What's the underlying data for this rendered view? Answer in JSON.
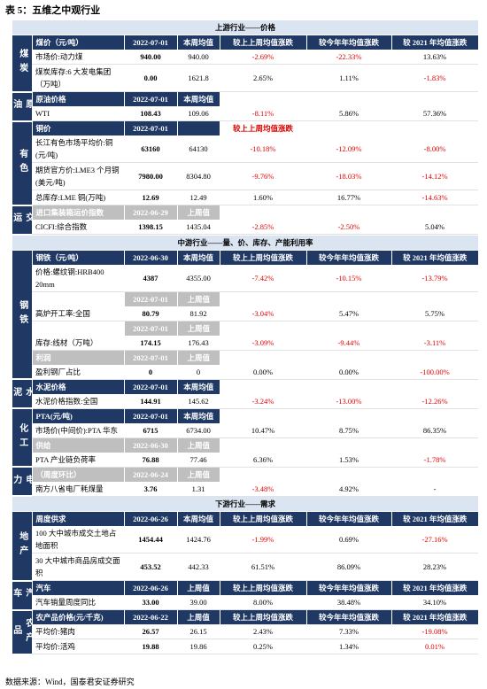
{
  "title": "表 5：五维之中观行业",
  "source": "数据来源：Wind，国泰君安证券研究",
  "sections": [
    {
      "title": "上游行业——价格",
      "groups": [
        {
          "category": "煤炭",
          "rows": [
            {
              "type": "header",
              "cells": [
                "煤价（元/吨）",
                "2022-07-01",
                "本周均值",
                "较上上周均值涨跌",
                "较今年年均值涨跌",
                "较 2021 年均值涨跌"
              ]
            },
            {
              "type": "data",
              "cells": [
                "市场价:动力煤",
                "940.00",
                "940.00",
                "-2.69%",
                "-22.33%",
                "13.63%"
              ],
              "red": [
                3,
                4
              ]
            },
            {
              "type": "data",
              "cells": [
                "煤炭库存:6 大发电集团（万吨）",
                "0.00",
                "1621.8",
                "2.65%",
                "1.11%",
                "-1.83%"
              ],
              "red": [
                5
              ]
            }
          ]
        },
        {
          "category": "原油",
          "rows": [
            {
              "type": "header",
              "cells": [
                "原油价格",
                "2022-07-01",
                "本周均值"
              ]
            },
            {
              "type": "data",
              "cells": [
                "WTI",
                "108.43",
                "109.06",
                "-8.11%",
                "5.86%",
                "57.36%"
              ],
              "red": [
                3
              ]
            }
          ]
        },
        {
          "category": "有色",
          "rows": [
            {
              "type": "header",
              "cells": [
                "铜价",
                "2022-07-01",
                null,
                "较上上周均值涨跌"
              ],
              "red": [
                3
              ]
            },
            {
              "type": "data",
              "cells": [
                "长江有色市场平均价:铜(元/吨)",
                "63160",
                "64130",
                "-10.18%",
                "-12.09%",
                "-8.00%"
              ],
              "red": [
                3,
                4,
                5
              ]
            },
            {
              "type": "data",
              "cells": [
                "期货官方价:LME3 个月铜(美元/吨)",
                "7980.00",
                "8304.80",
                "-9.76%",
                "-18.03%",
                "-14.12%"
              ],
              "red": [
                3,
                4,
                5
              ]
            },
            {
              "type": "data",
              "cells": [
                "总库存:LME 铜(万吨)",
                "12.69",
                "12.49",
                "1.60%",
                "16.77%",
                "-14.63%"
              ],
              "red": [
                5
              ]
            }
          ]
        },
        {
          "category": "交运",
          "rows": [
            {
              "type": "sub",
              "cells": [
                "进口集装箱运价指数",
                "2022-06-29",
                "上周值"
              ]
            },
            {
              "type": "data",
              "cells": [
                "CICFI:综合指数",
                "1398.15",
                "1435.04",
                "-2.85%",
                "-2.50%",
                "5.04%"
              ],
              "red": [
                3,
                4
              ]
            }
          ]
        }
      ]
    },
    {
      "title": "中游行业——量、价、库存、产能利用率",
      "groups": [
        {
          "category": "钢铁",
          "rows": [
            {
              "type": "header",
              "cells": [
                "钢铁（元/吨）",
                "2022-06-30",
                "本周均值",
                "较上上周均值涨跌",
                "较今年年均值涨跌",
                "较 2021 年均值涨跌"
              ]
            },
            {
              "type": "data",
              "cells": [
                "价格:螺纹钢:HRB400 20mm",
                "4387",
                "4355.00",
                "-7.42%",
                "-10.15%",
                "-13.79%"
              ],
              "red": [
                3,
                4,
                5
              ]
            },
            {
              "type": "sub",
              "cells": [
                null,
                "2022-07-01",
                "上周值"
              ]
            },
            {
              "type": "data",
              "cells": [
                "高炉开工率:全国",
                "80.79",
                "81.92",
                "-3.04%",
                "5.47%",
                "5.75%"
              ],
              "red": [
                3
              ]
            },
            {
              "type": "sub",
              "cells": [
                null,
                "2022-07-01",
                "上周值"
              ]
            },
            {
              "type": "data",
              "cells": [
                "库存:线材（万吨）",
                "174.15",
                "176.43",
                "-3.09%",
                "-9.44%",
                "-3.11%"
              ],
              "red": [
                3,
                4,
                5
              ]
            },
            {
              "type": "sub",
              "cells": [
                "利润",
                "2022-07-01",
                "上周值"
              ]
            },
            {
              "type": "data",
              "cells": [
                "盈利钢厂占比",
                "0",
                "0",
                "0.00%",
                "0.00%",
                "-100.00%"
              ],
              "red": [
                5
              ]
            }
          ]
        },
        {
          "category": "水泥",
          "rows": [
            {
              "type": "header",
              "cells": [
                "水泥价格",
                "2022-07-01",
                "本周均值"
              ]
            },
            {
              "type": "data",
              "cells": [
                "水泥价格指数:全国",
                "144.91",
                "145.62",
                "-3.24%",
                "-13.00%",
                "-12.26%"
              ],
              "red": [
                3,
                4,
                5
              ]
            }
          ]
        },
        {
          "category": "化工",
          "rows": [
            {
              "type": "header",
              "cells": [
                "PTA(元/吨)",
                "2022-07-01",
                "本周均值"
              ]
            },
            {
              "type": "data",
              "cells": [
                "市场价(中间价):PTA 华东",
                "6715",
                "6734.00",
                "10.47%",
                "8.75%",
                "86.35%"
              ]
            },
            {
              "type": "sub",
              "cells": [
                "供给",
                "2022-06-30",
                "上周值"
              ]
            },
            {
              "type": "data",
              "cells": [
                "PTA 产业链负荷率",
                "76.88",
                "77.46",
                "6.36%",
                "1.53%",
                "-1.78%"
              ],
              "red": [
                5
              ]
            }
          ]
        },
        {
          "category": "电力",
          "rows": [
            {
              "type": "sub",
              "cells": [
                "（周度环比）",
                "2022-06-24",
                "上周值"
              ]
            },
            {
              "type": "data",
              "cells": [
                "南方八省电厂耗煤量",
                "3.76",
                "1.31",
                "-3.48%",
                "4.92%",
                "-"
              ],
              "red": [
                3
              ]
            }
          ]
        }
      ]
    },
    {
      "title": "下游行业——需求",
      "groups": [
        {
          "category": "地产",
          "rows": [
            {
              "type": "header",
              "cells": [
                "周度供求",
                "2022-06-26",
                "本周均值",
                "较上上周均值涨跌",
                "较今年年均值涨跌",
                "较 2021 年均值涨跌"
              ]
            },
            {
              "type": "data",
              "cells": [
                "100 大中城市成交土地占地面积",
                "1454.44",
                "1424.76",
                "-1.99%",
                "0.69%",
                "-27.16%"
              ],
              "red": [
                3,
                5
              ]
            },
            {
              "type": "data",
              "cells": [
                "30 大中城市商品房成交面积",
                "453.52",
                "442.33",
                "61.51%",
                "86.09%",
                "28.23%"
              ]
            }
          ]
        },
        {
          "category": "汽车",
          "rows": [
            {
              "type": "header",
              "cells": [
                "汽车",
                "2022-06-26",
                "上周值",
                "较上上周均值涨跌",
                "较今年年均值涨跌",
                "较 2021 年均值涨跌"
              ]
            },
            {
              "type": "data",
              "cells": [
                "汽车销量周度同比",
                "33.00",
                "39.00",
                "8.00%",
                "38.48%",
                "34.10%"
              ]
            }
          ]
        },
        {
          "category": "农产品",
          "rows": [
            {
              "type": "header",
              "cells": [
                "农产品价格(元/千克)",
                "2022-06-22",
                "上周值",
                "较上上周均值涨跌",
                "较今年年均值涨跌",
                "较 2021 年均值涨跌"
              ]
            },
            {
              "type": "data",
              "cells": [
                "平均价:猪肉",
                "26.57",
                "26.15",
                "2.43%",
                "7.33%",
                "-19.08%"
              ],
              "red": [
                5
              ]
            },
            {
              "type": "data",
              "cells": [
                "平均价:活鸡",
                "19.88",
                "19.86",
                "0.25%",
                "1.34%",
                "0.01%"
              ],
              "red": [
                5
              ]
            }
          ]
        }
      ]
    }
  ]
}
